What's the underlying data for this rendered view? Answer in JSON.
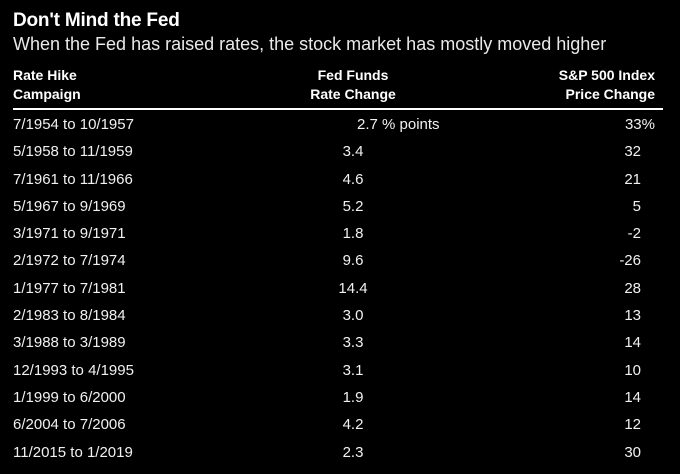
{
  "title": "Don't Mind the Fed",
  "subtitle": "When the Fed has raised rates, the stock market has mostly moved higher",
  "colors": {
    "background": "#000000",
    "text": "#ffffff",
    "rule": "#ffffff"
  },
  "table": {
    "headers": {
      "campaign": {
        "line1": "Rate Hike",
        "line2": "Campaign"
      },
      "rate": {
        "line1": "Fed Funds",
        "line2": "Rate Change"
      },
      "sp": {
        "line1": "S&P 500 Index",
        "line2": "Price Change"
      }
    },
    "rows": [
      {
        "campaign": "7/1954 to 10/1957",
        "rate": "2.7 % points",
        "sp": "33%"
      },
      {
        "campaign": "5/1958 to 11/1959",
        "rate": "3.4",
        "sp": "32"
      },
      {
        "campaign": "7/1961 to 11/1966",
        "rate": "4.6",
        "sp": "21"
      },
      {
        "campaign": "5/1967 to 9/1969",
        "rate": "5.2",
        "sp": "5"
      },
      {
        "campaign": "3/1971 to 9/1971",
        "rate": "1.8",
        "sp": "-2"
      },
      {
        "campaign": "2/1972 to 7/1974",
        "rate": "9.6",
        "sp": "-26"
      },
      {
        "campaign": "1/1977 to 7/1981",
        "rate": "14.4",
        "sp": "28"
      },
      {
        "campaign": "2/1983 to 8/1984",
        "rate": "3.0",
        "sp": "13"
      },
      {
        "campaign": "3/1988 to 3/1989",
        "rate": "3.3",
        "sp": "14"
      },
      {
        "campaign": "12/1993 to 4/1995",
        "rate": "3.1",
        "sp": "10"
      },
      {
        "campaign": "1/1999 to 6/2000",
        "rate": "1.9",
        "sp": "14"
      },
      {
        "campaign": "6/2004 to 7/2006",
        "rate": "4.2",
        "sp": "12"
      },
      {
        "campaign": "11/2015 to 1/2019",
        "rate": "2.3",
        "sp": "30"
      }
    ]
  },
  "chart_data": {
    "type": "table",
    "title": "Don't Mind the Fed",
    "subtitle": "When the Fed has raised rates, the stock market has mostly moved higher",
    "columns": [
      "Rate Hike Campaign",
      "Fed Funds Rate Change (% points)",
      "S&P 500 Index Price Change (%)"
    ],
    "rows": [
      [
        "7/1954 to 10/1957",
        2.7,
        33
      ],
      [
        "5/1958 to 11/1959",
        3.4,
        32
      ],
      [
        "7/1961 to 11/1966",
        4.6,
        21
      ],
      [
        "5/1967 to 9/1969",
        5.2,
        5
      ],
      [
        "3/1971 to 9/1971",
        1.8,
        -2
      ],
      [
        "2/1972 to 7/1974",
        9.6,
        -26
      ],
      [
        "1/1977 to 7/1981",
        14.4,
        28
      ],
      [
        "2/1983 to 8/1984",
        3.0,
        13
      ],
      [
        "3/1988 to 3/1989",
        3.3,
        14
      ],
      [
        "12/1993 to 4/1995",
        3.1,
        10
      ],
      [
        "1/1999 to 6/2000",
        1.9,
        14
      ],
      [
        "6/2004 to 7/2006",
        4.2,
        12
      ],
      [
        "11/2015 to 1/2019",
        2.3,
        30
      ]
    ],
    "units": {
      "fed_funds_rate_change": "% points",
      "sp500_price_change": "%"
    },
    "layout": {
      "background": "#000000",
      "text_color": "#ffffff",
      "header_rule": true,
      "row_dividers": false
    }
  }
}
